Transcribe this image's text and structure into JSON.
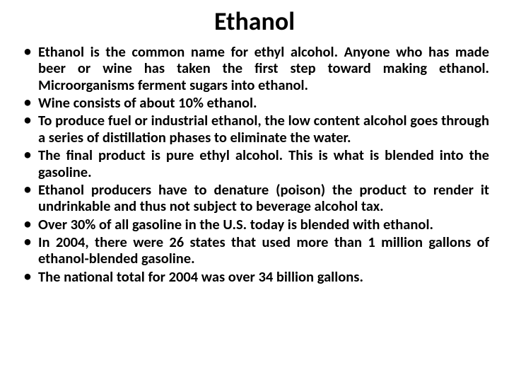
{
  "title": "Ethanol",
  "bullets": [
    "Ethanol is the common name for ethyl alcohol. Anyone who has made beer or wine has taken the first step toward making ethanol. Microorganisms ferment sugars into ethanol.",
    "Wine consists of about 10% ethanol.",
    "To produce fuel or industrial ethanol, the low content alcohol goes through a series of distillation phases to eliminate the water.",
    "The final product is pure ethyl alcohol. This is what is blended into the gasoline.",
    " Ethanol producers have to denature (poison) the product to render it undrinkable and thus not subject to beverage alcohol tax.",
    "Over 30% of all gasoline in the U.S. today is blended with ethanol.",
    "In 2004, there were 26 states that used more than 1 million gallons of ethanol-blended gasoline.",
    "The national total for 2004 was over 34 billion gallons."
  ]
}
